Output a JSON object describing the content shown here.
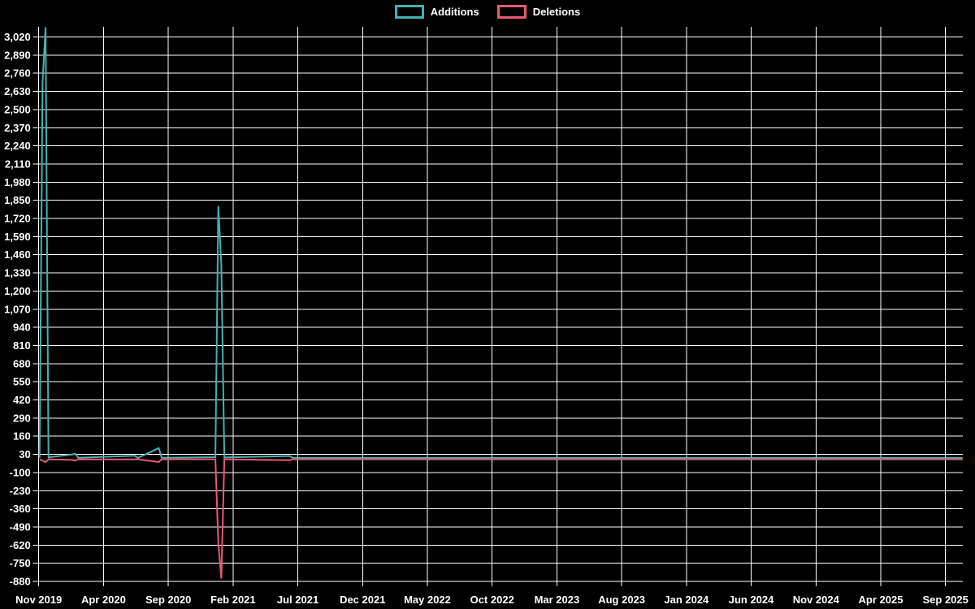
{
  "chart_data": {
    "type": "line",
    "title": "",
    "legend_position": "top",
    "grid": true,
    "background_color": "#000000",
    "gridline_color": "#ffffff",
    "text_color": "#ffffff",
    "series": [
      {
        "name": "Additions",
        "color": "#45b1b1",
        "points": [
          {
            "date": "2019-11-03",
            "value": 5
          },
          {
            "date": "2019-11-10",
            "value": 2700
          },
          {
            "date": "2019-11-17",
            "value": 3090
          },
          {
            "date": "2019-11-24",
            "value": 8
          },
          {
            "date": "2020-01-19",
            "value": 30
          },
          {
            "date": "2020-01-26",
            "value": 35
          },
          {
            "date": "2020-02-02",
            "value": 6
          },
          {
            "date": "2020-06-14",
            "value": 20
          },
          {
            "date": "2020-06-21",
            "value": 5
          },
          {
            "date": "2020-08-09",
            "value": 75
          },
          {
            "date": "2020-08-16",
            "value": 6
          },
          {
            "date": "2020-12-20",
            "value": 10
          },
          {
            "date": "2020-12-27",
            "value": 1810
          },
          {
            "date": "2021-01-03",
            "value": 1390
          },
          {
            "date": "2021-01-10",
            "value": 8
          },
          {
            "date": "2021-06-13",
            "value": 18
          },
          {
            "date": "2021-06-20",
            "value": 5
          },
          {
            "date": "2025-10-11",
            "value": 5
          }
        ]
      },
      {
        "name": "Deletions",
        "color": "#e85a72",
        "points": [
          {
            "date": "2019-11-03",
            "value": -5
          },
          {
            "date": "2019-11-10",
            "value": -15
          },
          {
            "date": "2019-11-17",
            "value": -25
          },
          {
            "date": "2019-11-24",
            "value": -5
          },
          {
            "date": "2020-01-19",
            "value": -10
          },
          {
            "date": "2020-01-26",
            "value": -15
          },
          {
            "date": "2020-02-02",
            "value": -5
          },
          {
            "date": "2020-06-14",
            "value": -6
          },
          {
            "date": "2020-06-21",
            "value": -5
          },
          {
            "date": "2020-08-09",
            "value": -25
          },
          {
            "date": "2020-08-16",
            "value": -5
          },
          {
            "date": "2020-12-20",
            "value": -5
          },
          {
            "date": "2020-12-27",
            "value": -605
          },
          {
            "date": "2021-01-03",
            "value": -860
          },
          {
            "date": "2021-01-10",
            "value": -5
          },
          {
            "date": "2021-06-13",
            "value": -12
          },
          {
            "date": "2021-06-20",
            "value": -5
          },
          {
            "date": "2025-10-11",
            "value": -5
          }
        ]
      }
    ],
    "y_axis": {
      "min": -880,
      "max": 3093,
      "tick_start": 3020,
      "tick_step": 130,
      "tick_labels": [
        "3,020",
        "2,890",
        "2,760",
        "2,630",
        "2,500",
        "2,370",
        "2,240",
        "2,110",
        "1,980",
        "1,850",
        "1,720",
        "1,590",
        "1,460",
        "1,330",
        "1,200",
        "1,070",
        "940",
        "810",
        "680",
        "550",
        "420",
        "290",
        "160",
        "30",
        "-100",
        "-230",
        "-360",
        "-490",
        "-620",
        "-750",
        "-880"
      ]
    },
    "x_axis": {
      "start_date": "2019-11-01",
      "end_date": "2025-10-11",
      "tick_step_months": 5,
      "tick_labels": [
        "Nov 2019",
        "Apr 2020",
        "Sep 2020",
        "Feb 2021",
        "Jul 2021",
        "Dec 2021",
        "May 2022",
        "Oct 2022",
        "Mar 2023",
        "Aug 2023",
        "Jan 2024",
        "Jun 2024",
        "Nov 2024",
        "Apr 2025",
        "Sep 2025"
      ]
    }
  }
}
